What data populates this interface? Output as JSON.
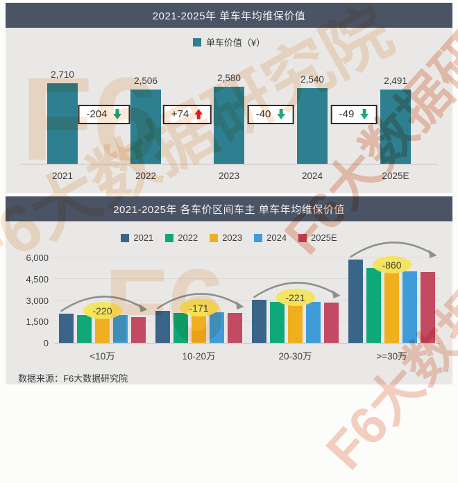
{
  "page": {
    "source": "数据来源：F6大数据研究院",
    "watermark": "F6大数据研究院",
    "watermark_logo": "F6"
  },
  "colors": {
    "titlebar": "#4A5464",
    "panel_bg": "#E9E8E6",
    "top_bar": "#2E7F8F",
    "up_arrow": "#E02020",
    "down_arrow": "#1FA97E",
    "annotation_oval": "#F6E45A",
    "arc": "#8F8F8F"
  },
  "chart_data": [
    {
      "type": "bar",
      "title": "2021-2025年 单车年均维保价值",
      "legend_label": "单车价值（¥）",
      "bar_color": "#2E7F8F",
      "categories": [
        "2021",
        "2022",
        "2023",
        "2024",
        "2025E"
      ],
      "values": [
        2710,
        2506,
        2580,
        2540,
        2491
      ],
      "value_labels": [
        "2,710",
        "2,506",
        "2,580",
        "2,540",
        "2,491"
      ],
      "changes": [
        {
          "label": "-204",
          "direction": "down"
        },
        {
          "label": "+74",
          "direction": "up"
        },
        {
          "label": "-40",
          "direction": "down"
        },
        {
          "label": "-49",
          "direction": "down"
        }
      ],
      "ylim": [
        0,
        2800
      ],
      "grid": false,
      "legend_position": "top"
    },
    {
      "type": "bar",
      "title": "2021-2025年 各车价区间车主 单车年均维保价值",
      "categories": [
        "<10万",
        "10-20万",
        "20-30万",
        ">=30万"
      ],
      "series": [
        {
          "name": "2021",
          "color": "#3A6589",
          "values": [
            2050,
            2250,
            3050,
            5850
          ]
        },
        {
          "name": "2022",
          "color": "#0FA878",
          "values": [
            1950,
            2100,
            2900,
            5300
          ]
        },
        {
          "name": "2023",
          "color": "#EFAF1E",
          "values": [
            2000,
            2200,
            2950,
            5250
          ]
        },
        {
          "name": "2024",
          "color": "#3F9CD9",
          "values": [
            1950,
            2150,
            2870,
            5050
          ]
        },
        {
          "name": "2025E",
          "color": "#C24A63",
          "values": [
            1830,
            2080,
            2830,
            4990
          ]
        }
      ],
      "annotations": [
        "-220",
        "-171",
        "-221",
        "-860"
      ],
      "yticks": [
        {
          "label": "6,000",
          "value": 6000
        },
        {
          "label": "4,500",
          "value": 4500
        },
        {
          "label": "3,000",
          "value": 3000
        },
        {
          "label": "1,500",
          "value": 1500
        },
        {
          "label": "0",
          "value": 0
        }
      ],
      "ylim": [
        0,
        6500
      ],
      "grid": true,
      "legend_position": "top"
    }
  ]
}
